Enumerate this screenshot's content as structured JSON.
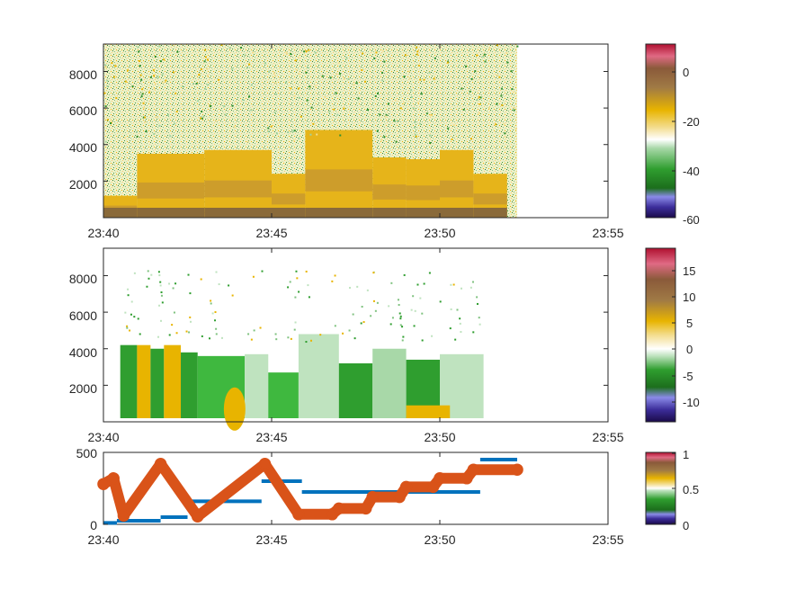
{
  "colors": {
    "axis": "#262626",
    "series_blue": "#0072BD",
    "series_orange": "#D95319",
    "colormap_stops": [
      "#1a0a4a",
      "#3c2d9a",
      "#7f7fe6",
      "#2c8a2c",
      "#3fb83f",
      "#bfe3bf",
      "#ffffff",
      "#f0d080",
      "#e8b400",
      "#a07040",
      "#8a5a3a",
      "#e0607a",
      "#b01030"
    ]
  },
  "chart_data": [
    {
      "type": "heatmap",
      "panel": "top",
      "x_ticks": [
        "23:40",
        "23:45",
        "23:50",
        "23:55"
      ],
      "y_ticks": [
        "2000",
        "4000",
        "6000",
        "8000"
      ],
      "xlim": [
        "23:40",
        "23:55"
      ],
      "ylim": [
        0,
        9500
      ],
      "data_extent_x": [
        "23:40",
        "23:52"
      ],
      "colorbar": {
        "ticks": [
          "0",
          "-20",
          "-40",
          "-60"
        ],
        "range": [
          -60,
          10
        ]
      },
      "description_segments": [
        {
          "x0": "23:40",
          "x1": "23:41",
          "top": 1200
        },
        {
          "x0": "23:41",
          "x1": "23:43",
          "top": 3500
        },
        {
          "x0": "23:43",
          "x1": "23:45",
          "top": 3700
        },
        {
          "x0": "23:45",
          "x1": "23:46",
          "top": 2400
        },
        {
          "x0": "23:46",
          "x1": "23:48",
          "top": 4800
        },
        {
          "x0": "23:48",
          "x1": "23:49",
          "top": 3300
        },
        {
          "x0": "23:49",
          "x1": "23:50",
          "top": 3200
        },
        {
          "x0": "23:50",
          "x1": "23:51",
          "top": 3700
        },
        {
          "x0": "23:51",
          "x1": "23:52",
          "top": 2400
        }
      ]
    },
    {
      "type": "heatmap",
      "panel": "middle",
      "x_ticks": [
        "23:40",
        "23:45",
        "23:50",
        "23:55"
      ],
      "y_ticks": [
        "2000",
        "4000",
        "6000",
        "8000"
      ],
      "xlim": [
        "23:40",
        "23:55"
      ],
      "ylim": [
        0,
        9500
      ],
      "data_extent_x": [
        "23:40",
        "23:51"
      ],
      "colorbar": {
        "ticks": [
          "15",
          "10",
          "5",
          "0",
          "-5",
          "-10"
        ],
        "range": [
          -13,
          19
        ]
      }
    },
    {
      "type": "line",
      "panel": "bottom",
      "x_ticks": [
        "23:40",
        "23:45",
        "23:50",
        "23:55"
      ],
      "y_ticks": [
        "0",
        "500"
      ],
      "xlim": [
        "23:40",
        "23:55"
      ],
      "ylim": [
        0,
        500
      ],
      "colorbar": {
        "ticks": [
          "1",
          "0.5",
          "0"
        ],
        "range": [
          0,
          1
        ]
      },
      "series": [
        {
          "style": "step-segments",
          "color": "blue",
          "segments": [
            {
              "x0": 40.0,
              "x1": 40.4,
              "y": 10
            },
            {
              "x0": 40.4,
              "x1": 41.7,
              "y": 25
            },
            {
              "x0": 41.7,
              "x1": 42.5,
              "y": 50
            },
            {
              "x0": 42.5,
              "x1": 44.7,
              "y": 160
            },
            {
              "x0": 44.7,
              "x1": 45.9,
              "y": 300
            },
            {
              "x0": 45.9,
              "x1": 51.2,
              "y": 225
            },
            {
              "x0": 51.2,
              "x1": 52.3,
              "y": 450
            }
          ]
        },
        {
          "style": "markers",
          "color": "orange",
          "x": [
            40.0,
            40.3,
            40.6,
            41.7,
            42.8,
            44.8,
            45.8,
            46.8,
            47.0,
            47.8,
            48.0,
            48.8,
            49.0,
            49.8,
            50.0,
            50.8,
            51.0,
            52.3
          ],
          "y": [
            280,
            320,
            60,
            420,
            55,
            420,
            70,
            70,
            110,
            110,
            190,
            190,
            260,
            260,
            320,
            320,
            380,
            380
          ]
        }
      ]
    }
  ]
}
